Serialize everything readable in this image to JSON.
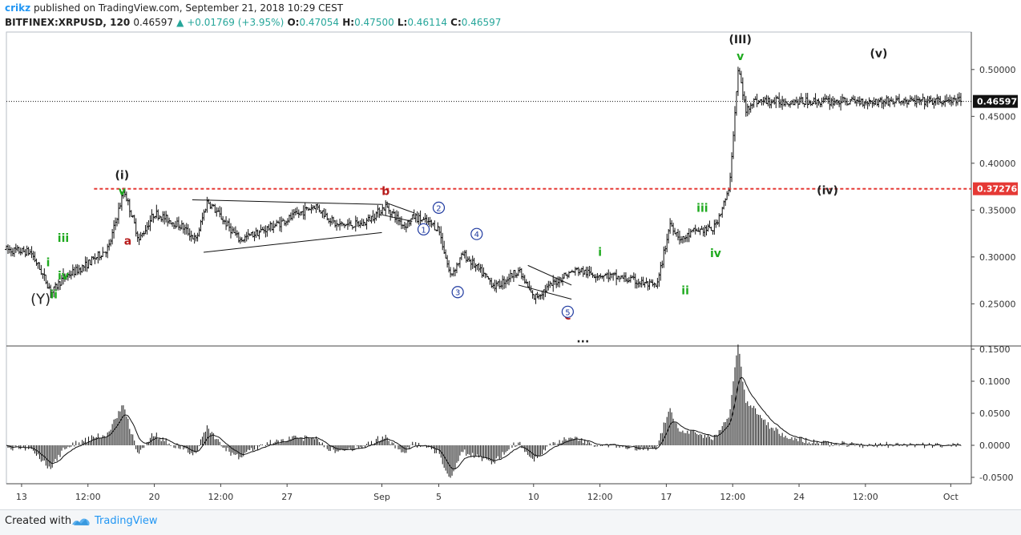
{
  "header": {
    "author": "crikz",
    "published": "published on TradingView.com, September 21, 2018 10:29 CEST",
    "symbol": "BITFINEX:XRPUSD, 120",
    "last": "0.46597",
    "change": "▲ +0.01769 (+3.95%)",
    "o_label": "O:",
    "o": "0.47054",
    "h_label": "H:",
    "h": "0.47500",
    "l_label": "L:",
    "l": "0.46114",
    "c_label": "C:",
    "c": "0.46597"
  },
  "footer": {
    "created_with": "Created with",
    "brand": "TradingView"
  },
  "colors": {
    "green": "#1faa1f",
    "red": "#b71c1c",
    "blue": "#1f3aa0",
    "black": "#222222",
    "dashed_red": "#e53935",
    "candles": "#111111"
  },
  "chart_data": [
    {
      "type": "bar",
      "panel": "price",
      "title": "BITFINEX:XRPUSD, 120",
      "ylim": [
        0.205,
        0.54
      ],
      "y_ticks": [
        "0.50000",
        "0.45000",
        "0.40000",
        "0.35000",
        "0.30000",
        "0.25000"
      ],
      "y_tick_values": [
        0.5,
        0.45,
        0.4,
        0.35,
        0.3,
        0.25
      ],
      "x_ticks": [
        "13",
        "12:00",
        "20",
        "12:00",
        "27",
        "Sep",
        "5",
        "10",
        "12:00",
        "17",
        "12:00",
        "24",
        "12:00",
        "Oct"
      ],
      "x_tick_days": [
        13,
        16.5,
        20,
        23.5,
        27,
        32,
        35,
        40,
        43.5,
        47,
        50.5,
        54,
        57.5,
        62
      ],
      "x_start_day": 12.2,
      "x_end_day": 62.6,
      "anchor_days": [
        12.2,
        13.5,
        14.6,
        15.2,
        16.3,
        17.6,
        18.4,
        19.2,
        20.0,
        21.5,
        22.2,
        22.8,
        24.5,
        26.5,
        28.5,
        29.6,
        31.0,
        32.2,
        33.2,
        33.7,
        34.5,
        35.0,
        35.6,
        36.3,
        38.0,
        39.2,
        40.0,
        41.6,
        42.3,
        43.0,
        44.0,
        45.0,
        46.5,
        47.2,
        47.8,
        48.5,
        49.5,
        50.3,
        50.8,
        51.2,
        51.5
      ],
      "anchor_prices": [
        0.308,
        0.305,
        0.262,
        0.278,
        0.29,
        0.31,
        0.372,
        0.318,
        0.347,
        0.332,
        0.318,
        0.36,
        0.318,
        0.335,
        0.355,
        0.334,
        0.335,
        0.354,
        0.333,
        0.343,
        0.336,
        0.33,
        0.28,
        0.303,
        0.268,
        0.286,
        0.256,
        0.28,
        0.286,
        0.282,
        0.28,
        0.276,
        0.268,
        0.336,
        0.318,
        0.328,
        0.33,
        0.37,
        0.502,
        0.455,
        0.466
      ],
      "last_price": 0.46597,
      "hline_price": 0.37276,
      "price_label_last": "0.46597",
      "price_label_level": "0.37276"
    },
    {
      "type": "bar",
      "panel": "oscillator",
      "ylim": [
        -0.06,
        0.155
      ],
      "y_ticks": [
        "0.1500",
        "0.1000",
        "0.0500",
        "0.0000",
        "-0.0500"
      ],
      "y_tick_values": [
        0.15,
        0.1,
        0.05,
        0.0,
        -0.05
      ],
      "series_note": "oscillator histogram with signal line (values derived from price series)"
    }
  ],
  "annotations": [
    {
      "text": "(III)",
      "day": 50.9,
      "price": 0.528,
      "color": "black"
    },
    {
      "text": "v",
      "day": 50.9,
      "price": 0.51,
      "color": "green"
    },
    {
      "text": "(v)",
      "day": 58.2,
      "price": 0.513,
      "color": "black"
    },
    {
      "text": "(i)",
      "day": 18.3,
      "price": 0.383,
      "color": "black"
    },
    {
      "text": "v",
      "day": 18.3,
      "price": 0.366,
      "color": "green"
    },
    {
      "text": "b",
      "day": 32.2,
      "price": 0.366,
      "color": "red"
    },
    {
      "text": "(iv)",
      "day": 55.5,
      "price": 0.367,
      "color": "black"
    },
    {
      "text": "iii",
      "day": 15.2,
      "price": 0.316,
      "color": "green"
    },
    {
      "text": "a",
      "day": 18.6,
      "price": 0.313,
      "color": "red"
    },
    {
      "text": "i",
      "day": 14.4,
      "price": 0.29,
      "color": "green"
    },
    {
      "text": "iv",
      "day": 15.2,
      "price": 0.276,
      "color": "green"
    },
    {
      "text": "ii",
      "day": 14.7,
      "price": 0.256,
      "color": "green"
    },
    {
      "text": "(Y)",
      "day": 14.0,
      "price": 0.25,
      "color": "black"
    },
    {
      "text": "iii",
      "day": 48.9,
      "price": 0.348,
      "color": "green"
    },
    {
      "text": "iv",
      "day": 49.6,
      "price": 0.3,
      "color": "green"
    },
    {
      "text": "ii",
      "day": 48.0,
      "price": 0.26,
      "color": "green"
    },
    {
      "text": "i",
      "day": 43.5,
      "price": 0.301,
      "color": "green"
    },
    {
      "text": "c",
      "day": 41.8,
      "price": 0.233,
      "color": "red"
    },
    {
      "text": "...",
      "day": 42.6,
      "price": 0.209,
      "color": "black"
    }
  ],
  "wave_circles": [
    {
      "text": "2",
      "day": 35.0,
      "price": 0.3525
    },
    {
      "text": "1",
      "day": 34.2,
      "price": 0.3295
    },
    {
      "text": "4",
      "day": 37.0,
      "price": 0.3245
    },
    {
      "text": "3",
      "day": 36.0,
      "price": 0.2625
    },
    {
      "text": "5",
      "day": 41.8,
      "price": 0.2415
    }
  ]
}
